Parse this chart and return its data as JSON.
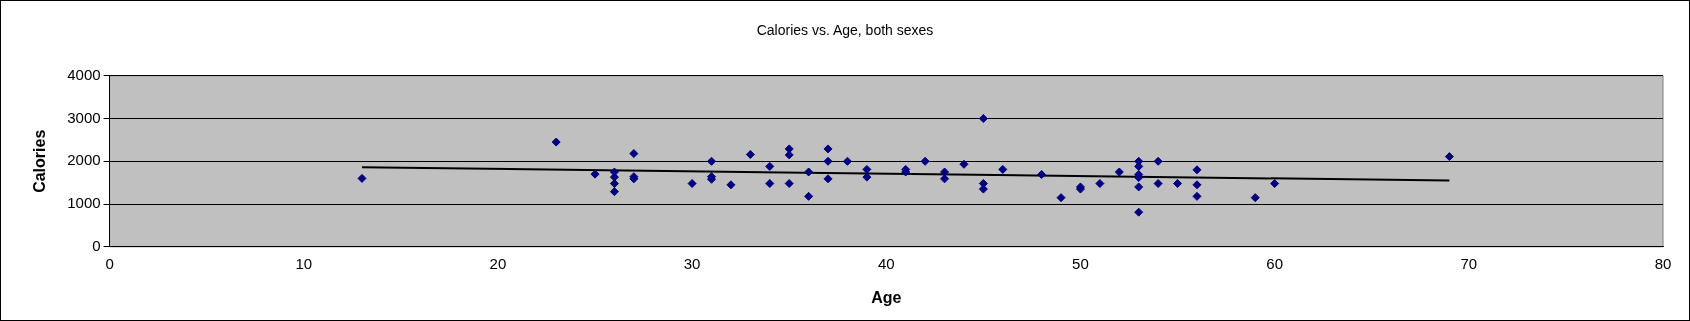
{
  "chart_data": {
    "type": "scatter",
    "title": "Calories vs. Age, both sexes",
    "xlabel": "Age",
    "ylabel": "Calories",
    "xlim": [
      0,
      80
    ],
    "xticks": [
      0,
      10,
      20,
      30,
      40,
      50,
      60,
      70,
      80
    ],
    "ylim": [
      0,
      4000
    ],
    "yticks": [
      0,
      1000,
      2000,
      3000,
      4000
    ],
    "grid": "y",
    "marker": "diamond",
    "series": [
      {
        "color": "#000080",
        "x": [
          13,
          23,
          25,
          26,
          26,
          26,
          26,
          27,
          27,
          27,
          30,
          31,
          31,
          31,
          32,
          33,
          34,
          34,
          35,
          35,
          35,
          36,
          36,
          37,
          37,
          37,
          38,
          39,
          39,
          41,
          41,
          42,
          43,
          43,
          44,
          45,
          45,
          45,
          46,
          48,
          49,
          50,
          50,
          51,
          52,
          53,
          53,
          53,
          53,
          53,
          53,
          54,
          54,
          55,
          56,
          56,
          56,
          59,
          60,
          69
        ],
        "values": [
          1600,
          2450,
          1700,
          1750,
          1630,
          1480,
          1290,
          2180,
          1640,
          1590,
          1480,
          2000,
          1640,
          1580,
          1450,
          2160,
          1880,
          1480,
          2290,
          2150,
          1480,
          1750,
          1180,
          2290,
          2000,
          1590,
          2000,
          1810,
          1630,
          1810,
          1750,
          2000,
          1750,
          1590,
          1930,
          3000,
          1480,
          1350,
          1810,
          1690,
          1150,
          1400,
          1350,
          1480,
          1750,
          2000,
          1880,
          1690,
          1620,
          1400,
          810,
          2000,
          1480,
          1480,
          1800,
          1450,
          1180,
          1150,
          1480,
          2110
        ]
      },
      {
        "type": "line",
        "color": "#000000",
        "marker": "none",
        "line_style": "solid",
        "x": [
          13,
          69
        ],
        "values": [
          1860,
          1550
        ]
      }
    ]
  }
}
